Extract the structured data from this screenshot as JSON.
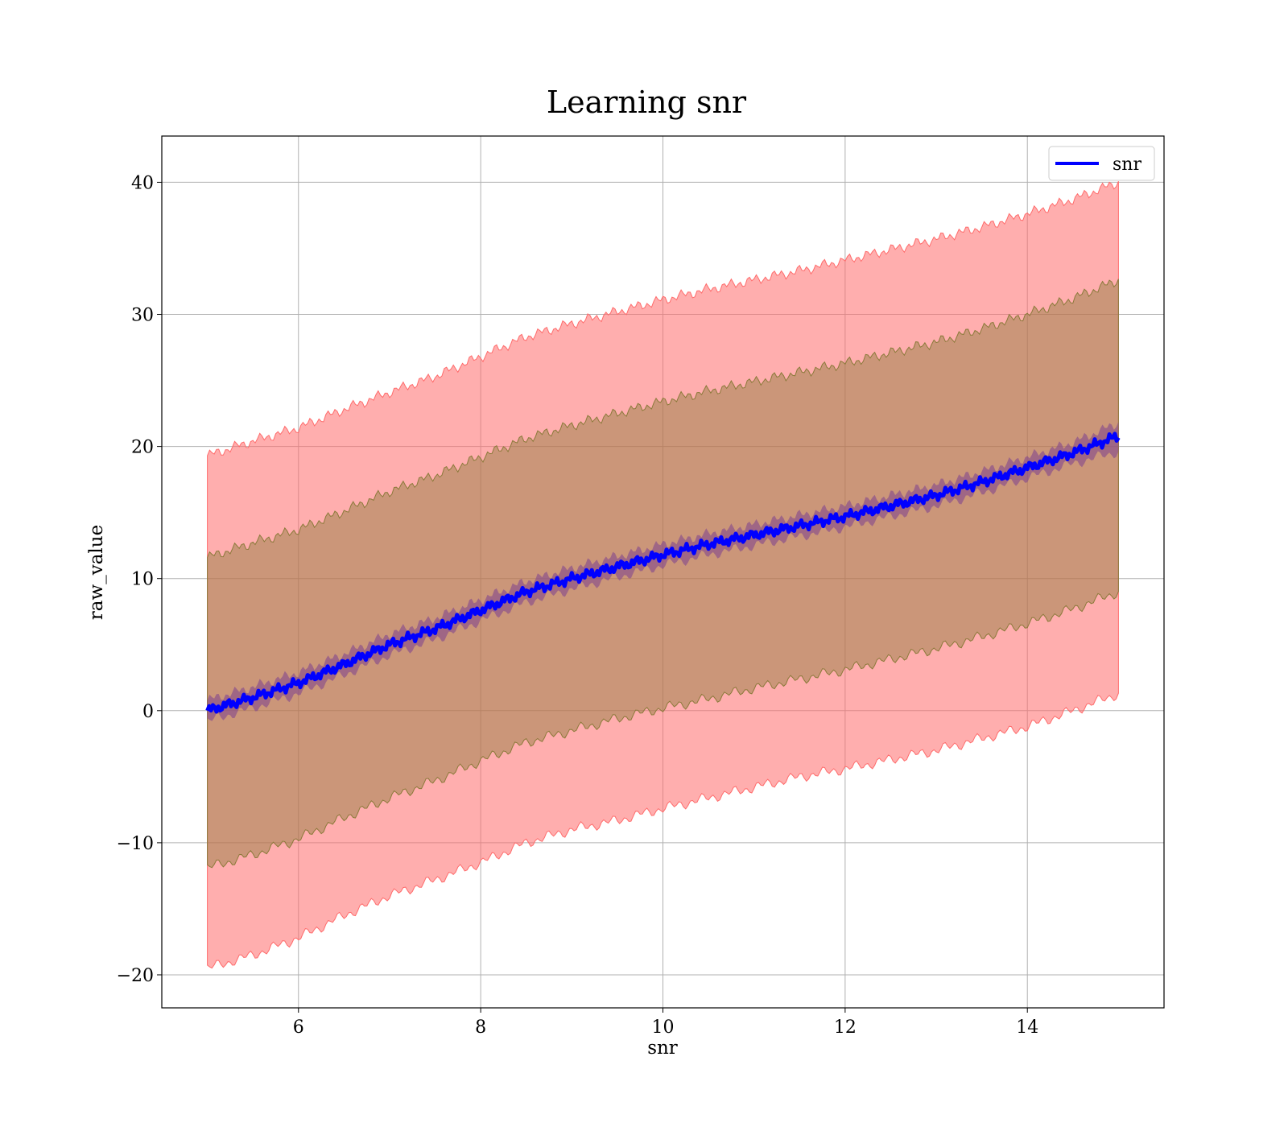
{
  "chart_data": {
    "type": "line",
    "title": "Learning snr",
    "xlabel": "snr",
    "ylabel": "raw_value",
    "xlim": [
      4.5,
      15.5
    ],
    "ylim": [
      -22.5,
      43.5
    ],
    "xticks": [
      6,
      8,
      10,
      12,
      14
    ],
    "yticks": [
      -20,
      -10,
      0,
      10,
      20,
      30,
      40
    ],
    "ytick_labels": [
      "−20",
      "−10",
      "0",
      "10",
      "20",
      "30",
      "40"
    ],
    "grid": true,
    "legend": {
      "position": "top-right",
      "entries": [
        "snr"
      ]
    },
    "colors": {
      "line": "#0000ff",
      "band_outer": "#ff6b6b",
      "band_inner": "#8b7a3a",
      "band_tight": "#7b3f8f"
    },
    "x": [
      5,
      5.5,
      6,
      6.5,
      7,
      7.5,
      8,
      8.5,
      9,
      9.5,
      10,
      10.5,
      11,
      11.5,
      12,
      12.5,
      13,
      13.5,
      14,
      14.5,
      15
    ],
    "series": [
      {
        "name": "snr",
        "values": [
          0,
          1.0,
          2.1,
          3.5,
          5.0,
          6.2,
          7.6,
          9.0,
          10.0,
          10.9,
          11.8,
          12.6,
          13.3,
          14.0,
          14.7,
          15.5,
          16.3,
          17.3,
          18.4,
          19.5,
          20.8
        ],
        "band": {
          "lower": [
            -0.8,
            0.2,
            1.3,
            2.7,
            4.2,
            5.4,
            6.8,
            8.2,
            9.2,
            10.1,
            11.0,
            11.8,
            12.5,
            13.2,
            13.9,
            14.7,
            15.5,
            16.5,
            17.6,
            18.7,
            19.6
          ],
          "upper": [
            0.8,
            1.8,
            2.9,
            4.3,
            5.8,
            7.0,
            8.4,
            9.8,
            10.8,
            11.7,
            12.6,
            13.4,
            14.1,
            14.8,
            15.5,
            16.3,
            17.1,
            18.1,
            19.2,
            20.3,
            21.8
          ]
        }
      }
    ],
    "bands": [
      {
        "lower": [
          -19.5,
          -18.5,
          -17.2,
          -15.5,
          -14.0,
          -12.8,
          -11.5,
          -10.0,
          -9.0,
          -8.3,
          -7.4,
          -6.6,
          -5.8,
          -5.0,
          -4.4,
          -3.7,
          -3.0,
          -2.1,
          -1.2,
          0.0,
          1.3
        ],
        "upper": [
          19.3,
          20.4,
          21.4,
          22.8,
          24.1,
          25.3,
          26.8,
          28.3,
          29.3,
          30.2,
          31.1,
          31.9,
          32.6,
          33.3,
          34.1,
          34.9,
          35.7,
          36.6,
          37.6,
          38.7,
          40.0
        ]
      },
      {
        "lower": [
          -11.9,
          -10.9,
          -9.7,
          -8.1,
          -6.6,
          -5.3,
          -3.8,
          -2.4,
          -1.5,
          -0.6,
          0.2,
          0.9,
          1.7,
          2.4,
          3.1,
          3.9,
          4.7,
          5.6,
          6.6,
          7.7,
          9.0
        ],
        "upper": [
          11.6,
          12.7,
          13.7,
          15.1,
          16.6,
          17.8,
          19.2,
          20.6,
          21.6,
          22.5,
          23.4,
          24.2,
          24.9,
          25.6,
          26.3,
          27.1,
          27.9,
          28.9,
          30.0,
          31.2,
          32.6
        ]
      }
    ]
  }
}
